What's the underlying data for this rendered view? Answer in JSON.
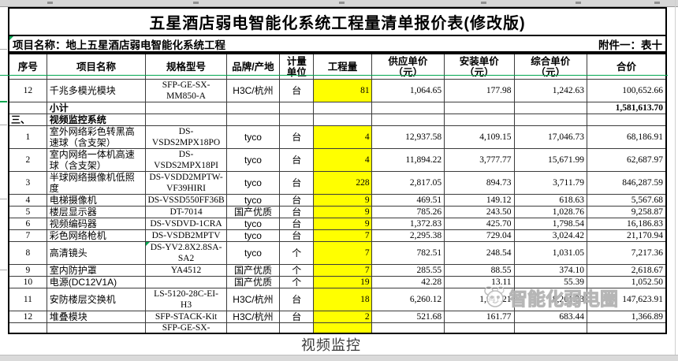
{
  "title": "五星酒店弱电智能化系统工程量清单报价表(修改版)",
  "project_row": {
    "label": "项目名称：地上五星酒店弱电智能化系统工程",
    "attachment": "附件一：表十"
  },
  "table": {
    "columns": [
      {
        "key": "no",
        "label": "序号"
      },
      {
        "key": "name",
        "label": "项目名称"
      },
      {
        "key": "spec",
        "label": "规格型号"
      },
      {
        "key": "brand",
        "label": "品牌/产地"
      },
      {
        "key": "unit",
        "label": "计量\n单位"
      },
      {
        "key": "qty",
        "label": "工程量"
      },
      {
        "key": "supply",
        "label": "供应单价\n（元）"
      },
      {
        "key": "install",
        "label": "安装单价\n（元）"
      },
      {
        "key": "comp",
        "label": "综合单价\n（元）"
      },
      {
        "key": "total",
        "label": "合价"
      }
    ],
    "rows": [
      {
        "kind": "data",
        "no": "12",
        "name": "千兆多模光模块",
        "spec": "SFP-GE-SX-\nMM850-A",
        "brand": "H3C/杭州",
        "unit": "台",
        "qty": "81",
        "supply": "1,064.65",
        "install": "177.98",
        "comp": "1,242.63",
        "total": "100,652.66"
      },
      {
        "kind": "subtotal",
        "name": "小计",
        "total": "1,581,613.70"
      },
      {
        "kind": "section",
        "no": "三、",
        "name": "视频监控系统"
      },
      {
        "kind": "data",
        "no": "1",
        "name": "室外网络彩色转黑高\n速球（含支架）",
        "spec": "DS-VSDS2MPX18PO",
        "brand": "tyco",
        "unit": "台",
        "qty": "4",
        "supply": "12,937.58",
        "install": "4,109.15",
        "comp": "17,046.73",
        "total": "68,186.91"
      },
      {
        "kind": "data",
        "no": "2",
        "name": "室内网络一体机高速\n球（含支架）",
        "spec": "DS-VSDS2MPX18PI",
        "brand": "tyco",
        "unit": "台",
        "qty": "4",
        "supply": "11,894.22",
        "install": "3,777.77",
        "comp": "15,671.99",
        "total": "62,687.97"
      },
      {
        "kind": "data",
        "no": "3",
        "name": "半球网络摄像机低照\n度",
        "spec": "DS-VSDD2MPTW-\nVF39HIRI",
        "brand": "tyco",
        "unit": "台",
        "qty": "228",
        "supply": "2,817.05",
        "install": "894.73",
        "comp": "3,711.79",
        "total": "846,287.59"
      },
      {
        "kind": "data",
        "no": "4",
        "name": "电梯摄像机",
        "spec": "DS-VSSD550FF36B",
        "brand": "tyco",
        "unit": "台",
        "qty": "9",
        "supply": "469.51",
        "install": "149.12",
        "comp": "618.63",
        "total": "5,567.68",
        "short": true
      },
      {
        "kind": "data",
        "no": "5",
        "name": "楼层显示器",
        "spec": "DT-7014",
        "brand": "国产优质",
        "unit": "台",
        "qty": "9",
        "supply": "785.26",
        "install": "243.50",
        "comp": "1,028.76",
        "total": "9,258.87",
        "short": true
      },
      {
        "kind": "data",
        "no": "6",
        "name": "视频编码器",
        "spec": "DS-VSDVD-1CRA",
        "brand": "tyco",
        "unit": "台",
        "qty": "9",
        "supply": "1,372.83",
        "install": "425.70",
        "comp": "1,798.54",
        "total": "16,186.83",
        "short": true
      },
      {
        "kind": "data",
        "no": "7",
        "name": "彩色网络枪机",
        "spec": "DS-VSDB2MPTV",
        "brand": "tyco",
        "unit": "台",
        "qty": "7",
        "supply": "2,295.38",
        "install": "729.04",
        "comp": "3,024.42",
        "total": "21,170.94",
        "short": true
      },
      {
        "kind": "data",
        "no": "8",
        "name": "高清镜头",
        "spec": "DS-YV2.8X2.8SA-\nSA2",
        "brand": "tyco",
        "unit": "个",
        "qty": "7",
        "supply": "782.51",
        "install": "248.54",
        "comp": "1,031.05",
        "total": "7,217.36",
        "marker": true
      },
      {
        "kind": "data",
        "no": "9",
        "name": "室内防护罩",
        "spec": "YA4512",
        "brand": "国产优质",
        "unit": "个",
        "qty": "7",
        "supply": "285.55",
        "install": "88.55",
        "comp": "374.10",
        "total": "2,618.67",
        "short": true
      },
      {
        "kind": "data",
        "no": "10",
        "name": "电源(DC12V1A)",
        "spec": "",
        "brand": "国产优质",
        "unit": "个",
        "qty": "19",
        "supply": "42.28",
        "install": "13.11",
        "comp": "55.39",
        "total": "1,052.50",
        "short": true
      },
      {
        "kind": "data",
        "no": "11",
        "name": "安防楼层交换机",
        "spec": "LS-5120-28C-EI-\nH3",
        "brand": "H3C/杭州",
        "unit": "台",
        "qty": "18",
        "supply": "6,260.12",
        "install": "1,941.21",
        "comp": "8,201.33",
        "total": "147,623.91"
      },
      {
        "kind": "data",
        "no": "12",
        "name": "堆叠模块",
        "spec": "SFP-STACK-Kit",
        "brand": "H3C/杭州",
        "unit": "台",
        "qty": "2",
        "supply": "521.68",
        "install": "161.77",
        "comp": "683.44",
        "total": "1,366.89",
        "short": true
      },
      {
        "kind": "partial",
        "spec": "SFP-GE-SX-"
      }
    ]
  },
  "watermark": {
    "text": "智能化弱电圈"
  },
  "caption": "视频监控",
  "colors": {
    "highlight": "#ffff00",
    "accent_green": "#00a64f",
    "watermark_grey": "#b3b3b3"
  }
}
